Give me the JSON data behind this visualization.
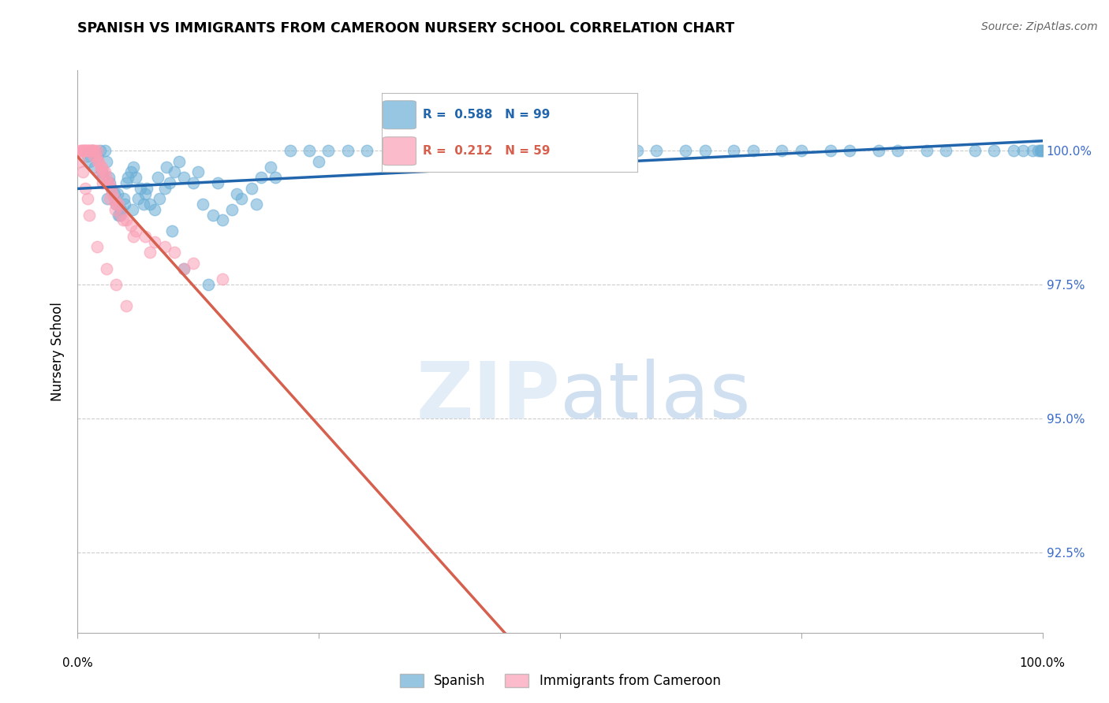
{
  "title": "SPANISH VS IMMIGRANTS FROM CAMEROON NURSERY SCHOOL CORRELATION CHART",
  "source": "Source: ZipAtlas.com",
  "ylabel": "Nursery School",
  "yticks": [
    92.5,
    95.0,
    97.5,
    100.0
  ],
  "ytick_labels": [
    "92.5%",
    "95.0%",
    "97.5%",
    "100.0%"
  ],
  "xrange": [
    0.0,
    100.0
  ],
  "yrange": [
    91.0,
    101.5
  ],
  "legend_blue_label": "Spanish",
  "legend_pink_label": "Immigrants from Cameroon",
  "blue_R": 0.588,
  "blue_N": 99,
  "pink_R": 0.212,
  "pink_N": 59,
  "blue_color": "#6baed6",
  "pink_color": "#fa9fb5",
  "blue_line_color": "#2166ac",
  "pink_line_color": "#d6604d",
  "grid_color": "#cccccc",
  "blue_scatter_x": [
    1.2,
    1.5,
    2.0,
    2.3,
    2.8,
    3.0,
    3.2,
    3.5,
    3.8,
    4.0,
    4.2,
    4.5,
    4.8,
    5.0,
    5.2,
    5.5,
    5.8,
    6.0,
    6.5,
    7.0,
    7.5,
    8.0,
    8.5,
    9.0,
    9.5,
    10.0,
    11.0,
    12.0,
    13.0,
    14.0,
    15.0,
    16.0,
    17.0,
    18.0,
    19.0,
    20.0,
    22.0,
    24.0,
    26.0,
    28.0,
    30.0,
    35.0,
    40.0,
    45.0,
    50.0,
    55.0,
    60.0,
    65.0,
    70.0,
    75.0,
    80.0,
    85.0,
    90.0,
    95.0,
    98.0,
    99.0,
    99.5,
    99.8,
    99.9,
    100.0,
    2.5,
    3.3,
    4.1,
    4.9,
    5.7,
    6.3,
    7.2,
    8.3,
    9.2,
    10.5,
    12.5,
    14.5,
    16.5,
    18.5,
    20.5,
    25.0,
    33.0,
    38.0,
    43.0,
    48.0,
    53.0,
    58.0,
    63.0,
    68.0,
    73.0,
    78.0,
    83.0,
    88.0,
    93.0,
    97.0,
    1.0,
    1.8,
    2.6,
    3.1,
    4.4,
    6.8,
    9.8,
    11.0,
    13.5
  ],
  "blue_scatter_y": [
    99.8,
    100.0,
    99.9,
    100.0,
    100.0,
    99.8,
    99.5,
    99.3,
    99.2,
    99.0,
    98.8,
    98.9,
    99.1,
    99.4,
    99.5,
    99.6,
    99.7,
    99.5,
    99.3,
    99.2,
    99.0,
    98.9,
    99.1,
    99.3,
    99.4,
    99.6,
    99.5,
    99.4,
    99.0,
    98.8,
    98.7,
    98.9,
    99.1,
    99.3,
    99.5,
    99.7,
    100.0,
    100.0,
    100.0,
    100.0,
    100.0,
    100.0,
    100.0,
    100.0,
    100.0,
    100.0,
    100.0,
    100.0,
    100.0,
    100.0,
    100.0,
    100.0,
    100.0,
    100.0,
    100.0,
    100.0,
    100.0,
    100.0,
    100.0,
    100.0,
    99.6,
    99.4,
    99.2,
    99.0,
    98.9,
    99.1,
    99.3,
    99.5,
    99.7,
    99.8,
    99.6,
    99.4,
    99.2,
    99.0,
    99.5,
    99.8,
    100.0,
    100.0,
    100.0,
    100.0,
    100.0,
    100.0,
    100.0,
    100.0,
    100.0,
    100.0,
    100.0,
    100.0,
    100.0,
    100.0,
    99.9,
    99.7,
    99.5,
    99.1,
    98.8,
    99.0,
    98.5,
    97.8,
    97.5
  ],
  "pink_scatter_x": [
    0.5,
    0.8,
    1.0,
    1.2,
    1.5,
    1.8,
    2.0,
    2.2,
    2.5,
    2.8,
    3.0,
    3.2,
    3.5,
    3.8,
    4.0,
    4.5,
    5.0,
    5.5,
    6.0,
    7.0,
    8.0,
    9.0,
    10.0,
    12.0,
    15.0,
    0.3,
    0.6,
    0.9,
    1.1,
    1.3,
    1.6,
    1.9,
    2.1,
    2.4,
    2.7,
    3.1,
    3.6,
    4.2,
    0.4,
    0.7,
    1.4,
    1.7,
    2.3,
    2.6,
    3.3,
    3.9,
    4.7,
    5.8,
    7.5,
    11.0,
    0.2,
    0.5,
    0.8,
    1.0,
    1.2,
    2.0,
    3.0,
    4.0,
    5.0
  ],
  "pink_scatter_y": [
    100.0,
    100.0,
    100.0,
    100.0,
    100.0,
    100.0,
    100.0,
    99.8,
    99.7,
    99.6,
    99.5,
    99.4,
    99.3,
    99.1,
    99.0,
    98.8,
    98.7,
    98.6,
    98.5,
    98.4,
    98.3,
    98.2,
    98.1,
    97.9,
    97.6,
    100.0,
    100.0,
    100.0,
    100.0,
    100.0,
    100.0,
    99.9,
    99.8,
    99.7,
    99.6,
    99.4,
    99.2,
    99.0,
    100.0,
    100.0,
    100.0,
    99.9,
    99.6,
    99.4,
    99.1,
    98.9,
    98.7,
    98.4,
    98.1,
    97.8,
    99.8,
    99.6,
    99.3,
    99.1,
    98.8,
    98.2,
    97.8,
    97.5,
    97.1
  ]
}
